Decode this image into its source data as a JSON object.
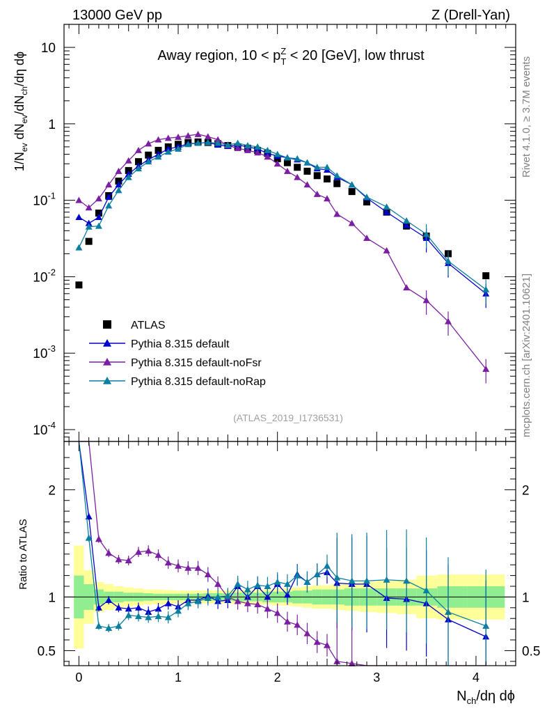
{
  "header": {
    "left": "13000 GeV pp",
    "right": "Z (Drell-Yan)"
  },
  "side_labels": {
    "rivet": "Rivet 4.1.0, ≥ 3.7M events",
    "mcplots": "mcplots.cern.ch [arXiv:2401.10621]"
  },
  "chart_data": {
    "type": "scatter",
    "title": "Away region, 10 < p_T^Z < 20 [GeV], low thrust",
    "title_parts": {
      "pre": "Away region, 10 < p",
      "sup": "Z",
      "sub": "T",
      "post": " < 20 [GeV], low thrust"
    },
    "analysis_id": "(ATLAS_2019_I1736531)",
    "xlabel": "N_ch/dη dϕ",
    "ylabel": "1/N_ev dN_ev/dN_ch/dη dϕ",
    "ratio_ylabel": "Ratio to ATLAS",
    "xlim": [
      -0.15,
      4.4
    ],
    "ylim": [
      7e-05,
      20
    ],
    "yscale": "log",
    "ratio_ylim": [
      0.36,
      2.45
    ],
    "xticks": [
      0,
      1,
      2,
      3,
      4
    ],
    "xtick_labels": [
      "0",
      "1",
      "2",
      "3",
      "4"
    ],
    "ytick_labels": [
      {
        "base": "10",
        "exp": "-4",
        "v": 0.0001
      },
      {
        "base": "10",
        "exp": "-3",
        "v": 0.001
      },
      {
        "base": "10",
        "exp": "-2",
        "v": 0.01
      },
      {
        "base": "10",
        "exp": "-1",
        "v": 0.1
      },
      {
        "base": "1",
        "exp": "",
        "v": 1
      },
      {
        "base": "10",
        "exp": "",
        "v": 10
      }
    ],
    "ratio_yticks": [
      0.5,
      1,
      2
    ],
    "ratio_ytick_labels": [
      "0.5",
      "1",
      "2"
    ],
    "legend_position": "lower-left",
    "legend": [
      {
        "label": "ATLAS",
        "marker": "square",
        "color": "#000000"
      },
      {
        "label": "Pythia 8.315 default",
        "marker": "triangle",
        "color": "#0000cc"
      },
      {
        "label": "Pythia 8.315 default-noFsr",
        "marker": "triangle",
        "color": "#7b1fa2"
      },
      {
        "label": "Pythia 8.315 default-noRap",
        "marker": "triangle",
        "color": "#0a7fa0"
      }
    ],
    "x": [
      0.0,
      0.1,
      0.2,
      0.3,
      0.4,
      0.5,
      0.6,
      0.7,
      0.8,
      0.9,
      1.0,
      1.1,
      1.2,
      1.3,
      1.4,
      1.5,
      1.6,
      1.7,
      1.8,
      1.9,
      2.0,
      2.1,
      2.2,
      2.3,
      2.4,
      2.5,
      2.6,
      2.75,
      2.9,
      3.1,
      3.3,
      3.5,
      3.72,
      4.1
    ],
    "series": [
      {
        "name": "ATLAS",
        "values": [
          0.0078,
          0.029,
          0.068,
          0.115,
          0.178,
          0.245,
          0.32,
          0.39,
          0.45,
          0.5,
          0.54,
          0.57,
          0.58,
          0.57,
          0.55,
          0.52,
          0.5,
          0.48,
          0.45,
          0.41,
          0.35,
          0.31,
          0.27,
          0.24,
          0.21,
          0.19,
          0.165,
          0.13,
          0.095,
          0.07,
          0.046,
          0.034,
          0.02,
          0.0103
        ]
      },
      {
        "name": "Pythia 8.315 default",
        "values": [
          0.06,
          0.05,
          0.06,
          0.11,
          0.16,
          0.22,
          0.28,
          0.34,
          0.4,
          0.47,
          0.5,
          0.55,
          0.56,
          0.57,
          0.53,
          0.51,
          0.53,
          0.5,
          0.47,
          0.41,
          0.38,
          0.36,
          0.34,
          0.31,
          0.26,
          0.25,
          0.2,
          0.16,
          0.107,
          0.07,
          0.047,
          0.032,
          0.015,
          0.006
        ],
        "ratio": [
          7.5,
          1.75,
          0.9,
          0.97,
          0.9,
          0.89,
          0.9,
          0.86,
          0.89,
          0.94,
          0.91,
          0.97,
          0.97,
          1.01,
          0.96,
          0.97,
          1.1,
          1.0,
          1.1,
          1.0,
          1.12,
          1.02,
          1.21,
          1.14,
          1.21,
          1.23,
          1.13,
          1.12,
          1.12,
          0.99,
          0.98,
          0.94,
          0.79,
          0.63
        ]
      },
      {
        "name": "Pythia 8.315 default-noFsr",
        "values": [
          0.1,
          0.08,
          0.105,
          0.16,
          0.24,
          0.33,
          0.45,
          0.55,
          0.62,
          0.65,
          0.67,
          0.7,
          0.73,
          0.68,
          0.62,
          0.52,
          0.48,
          0.45,
          0.42,
          0.37,
          0.3,
          0.24,
          0.2,
          0.16,
          0.12,
          0.105,
          0.066,
          0.05,
          0.032,
          0.022,
          0.0072,
          0.0049,
          0.0026,
          0.00062
        ],
        "ratio": [
          12.8,
          2.8,
          1.54,
          1.41,
          1.35,
          1.34,
          1.42,
          1.43,
          1.39,
          1.32,
          1.29,
          1.27,
          1.27,
          1.21,
          1.12,
          1.0,
          0.96,
          0.94,
          0.93,
          0.89,
          0.85,
          0.77,
          0.74,
          0.66,
          0.58,
          0.55,
          0.4,
          0.38,
          0.34,
          0.31,
          0.16,
          0.14,
          0.13,
          0.06
        ]
      },
      {
        "name": "Pythia 8.315 default-noRap",
        "values": [
          0.024,
          0.045,
          0.046,
          0.085,
          0.135,
          0.2,
          0.26,
          0.32,
          0.37,
          0.43,
          0.47,
          0.54,
          0.56,
          0.57,
          0.56,
          0.53,
          0.56,
          0.52,
          0.5,
          0.45,
          0.4,
          0.36,
          0.35,
          0.31,
          0.27,
          0.27,
          0.21,
          0.16,
          0.11,
          0.082,
          0.054,
          0.036,
          0.016,
          0.0068
        ],
        "ratio": [
          3.1,
          1.55,
          0.73,
          0.71,
          0.73,
          0.83,
          0.82,
          0.81,
          0.82,
          0.81,
          0.87,
          0.94,
          0.96,
          0.99,
          1.0,
          1.01,
          1.12,
          1.07,
          1.11,
          1.1,
          1.14,
          1.12,
          1.2,
          1.14,
          1.21,
          1.29,
          1.18,
          1.15,
          1.15,
          1.16,
          1.15,
          1.06,
          0.86,
          0.73
        ]
      }
    ],
    "ratio_band_inner": [
      0.8,
      0.88,
      0.93,
      0.95,
      0.95,
      0.96,
      0.96,
      0.965,
      0.97,
      0.97,
      0.97,
      0.97,
      0.97,
      0.965,
      0.965,
      0.965,
      0.96,
      0.96,
      0.96,
      0.95,
      0.95,
      0.95,
      0.94,
      0.94,
      0.93,
      0.93,
      0.93,
      0.92,
      0.92,
      0.92,
      0.92,
      0.92,
      0.9,
      0.9
    ],
    "ratio_band_outer": [
      0.52,
      0.75,
      0.86,
      0.88,
      0.9,
      0.91,
      0.92,
      0.93,
      0.93,
      0.935,
      0.94,
      0.94,
      0.94,
      0.94,
      0.94,
      0.94,
      0.935,
      0.935,
      0.93,
      0.93,
      0.92,
      0.92,
      0.91,
      0.9,
      0.89,
      0.89,
      0.88,
      0.87,
      0.86,
      0.85,
      0.84,
      0.8,
      0.79,
      0.79
    ]
  }
}
